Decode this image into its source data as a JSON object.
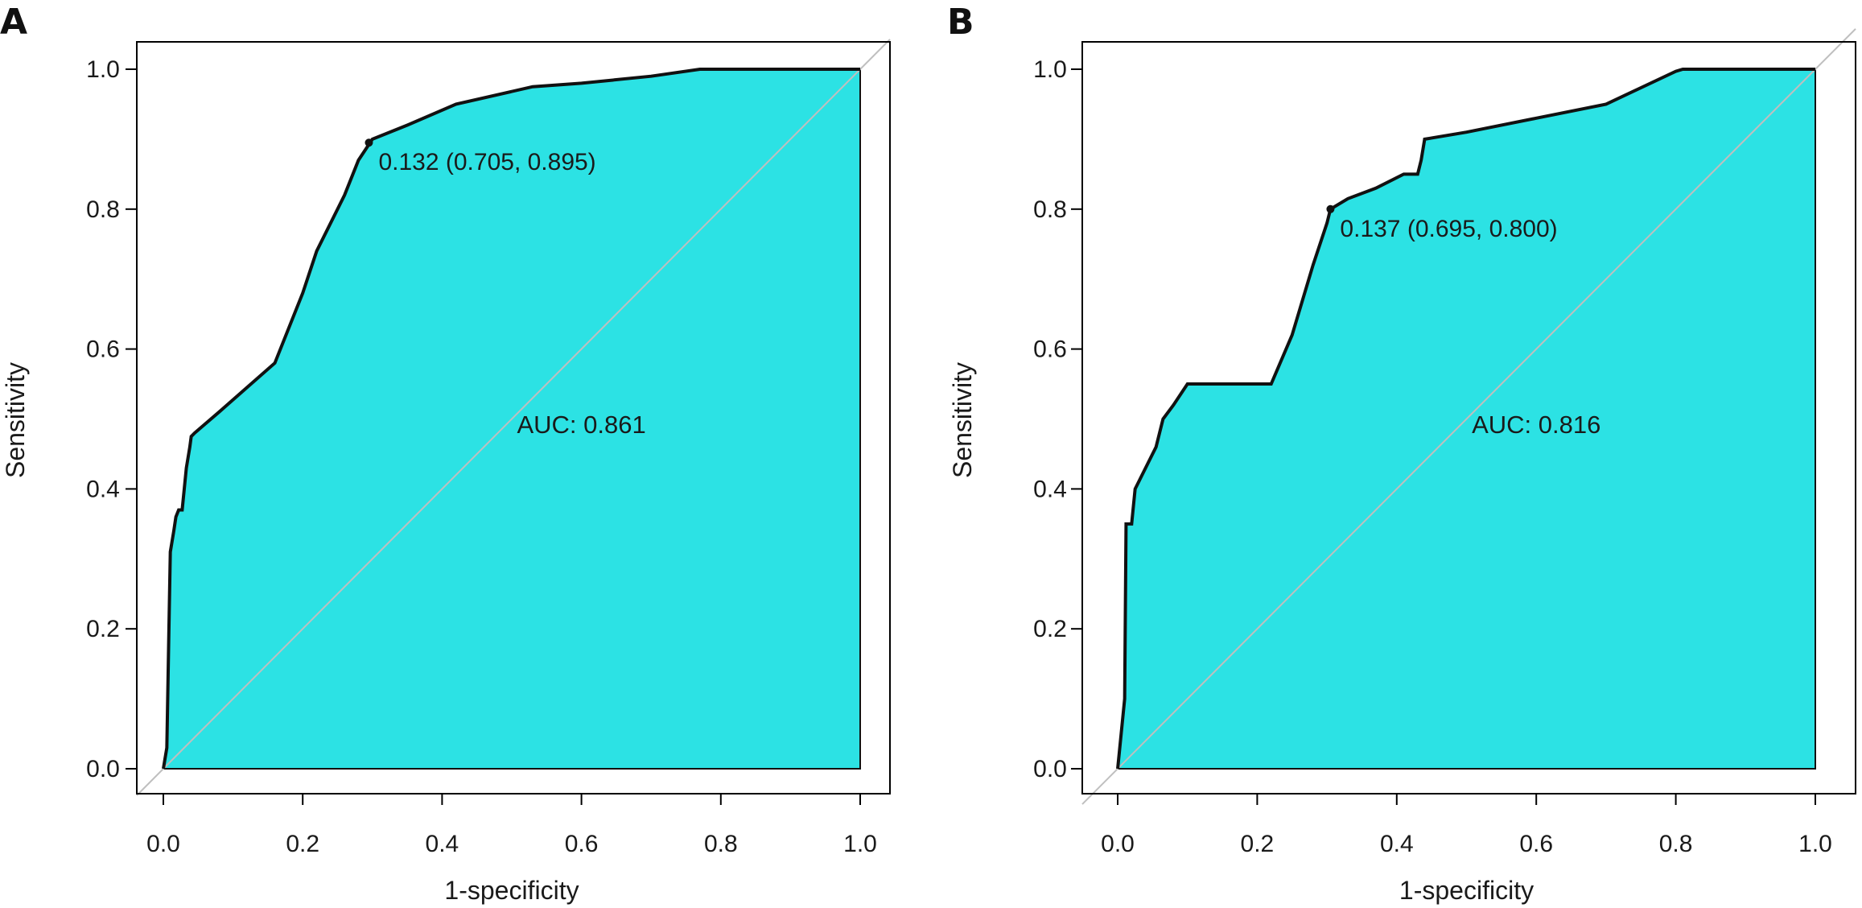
{
  "colors": {
    "fill": "#2ce2e4",
    "curve": "#111111",
    "diagonal": "#bfbfbf",
    "frame": "#000000"
  },
  "chart_data": [
    {
      "type": "line",
      "panel": "A",
      "xlabel": "1-specificity",
      "ylabel": "Sensitivity",
      "xlim": [
        0,
        1
      ],
      "ylim": [
        0,
        1
      ],
      "x_ticks": [
        "0.0",
        "0.2",
        "0.4",
        "0.6",
        "0.8",
        "1.0"
      ],
      "y_ticks": [
        "0.0",
        "0.2",
        "0.4",
        "0.6",
        "0.8",
        "1.0"
      ],
      "grid": false,
      "auc_text": "AUC: 0.861",
      "auc_pos": [
        0.6,
        0.48
      ],
      "threshold_point": [
        0.295,
        0.895
      ],
      "threshold_text": "0.132 (0.705, 0.895)",
      "x": [
        0,
        0.005,
        0.008,
        0.01,
        0.015,
        0.018,
        0.022,
        0.027,
        0.03,
        0.033,
        0.038,
        0.04,
        0.045,
        0.08,
        0.12,
        0.16,
        0.2,
        0.22,
        0.26,
        0.28,
        0.3,
        0.35,
        0.42,
        0.53,
        0.6,
        0.7,
        0.77,
        0.8,
        1.0
      ],
      "y": [
        0,
        0.03,
        0.2,
        0.31,
        0.34,
        0.36,
        0.37,
        0.37,
        0.4,
        0.43,
        0.46,
        0.475,
        0.48,
        0.51,
        0.545,
        0.58,
        0.68,
        0.74,
        0.82,
        0.87,
        0.9,
        0.92,
        0.95,
        0.975,
        0.98,
        0.99,
        1.0,
        1.0,
        1.0
      ]
    },
    {
      "type": "line",
      "panel": "B",
      "xlabel": "1-specificity",
      "ylabel": "Sensitivity",
      "xlim": [
        0,
        1
      ],
      "ylim": [
        0,
        1
      ],
      "x_ticks": [
        "0.0",
        "0.2",
        "0.4",
        "0.6",
        "0.8",
        "1.0"
      ],
      "y_ticks": [
        "0.0",
        "0.2",
        "0.4",
        "0.6",
        "0.8",
        "1.0"
      ],
      "grid": false,
      "auc_text": "AUC: 0.816",
      "auc_pos": [
        0.6,
        0.48
      ],
      "threshold_point": [
        0.305,
        0.8
      ],
      "threshold_text": "0.137 (0.695, 0.800)",
      "x": [
        0,
        0.005,
        0.01,
        0.012,
        0.015,
        0.02,
        0.025,
        0.03,
        0.035,
        0.045,
        0.055,
        0.06,
        0.065,
        0.08,
        0.1,
        0.15,
        0.22,
        0.25,
        0.28,
        0.3,
        0.305,
        0.33,
        0.37,
        0.41,
        0.43,
        0.435,
        0.44,
        0.5,
        0.6,
        0.7,
        0.8,
        0.81,
        1.0
      ],
      "y": [
        0,
        0.05,
        0.1,
        0.35,
        0.35,
        0.35,
        0.4,
        0.41,
        0.42,
        0.44,
        0.46,
        0.48,
        0.5,
        0.52,
        0.55,
        0.55,
        0.55,
        0.62,
        0.72,
        0.78,
        0.8,
        0.815,
        0.83,
        0.85,
        0.85,
        0.87,
        0.9,
        0.91,
        0.93,
        0.95,
        0.997,
        1.0,
        1.0
      ]
    }
  ]
}
